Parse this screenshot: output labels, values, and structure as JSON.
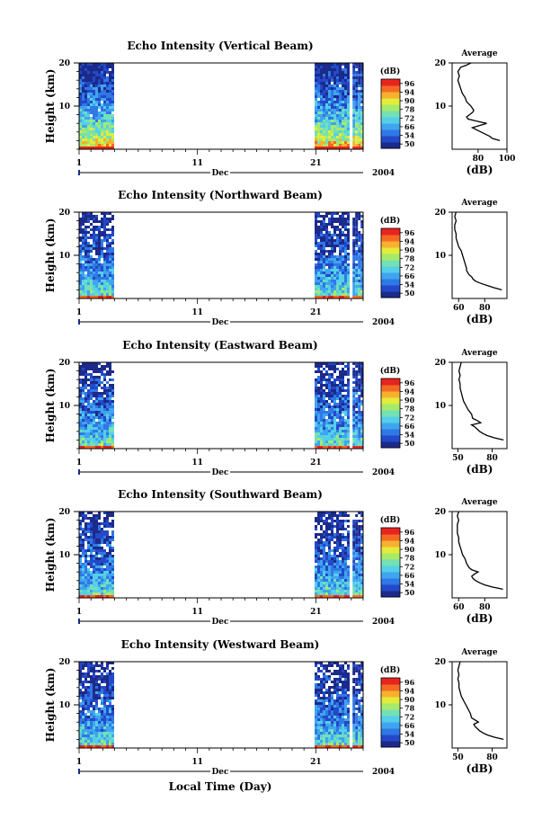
{
  "chart_data": {
    "type": "heatmap",
    "common": {
      "x_ticks": [
        1,
        11,
        21
      ],
      "x_range": [
        1,
        25
      ],
      "y_ticks": [
        10,
        20
      ],
      "y_range": [
        0,
        20
      ],
      "xlabel": "Local Time (Day)",
      "month_label": "Dec",
      "year_label": "2004",
      "ylabel": "Height (km)",
      "data_columns_days": [
        [
          1,
          3.8
        ],
        [
          20.9,
          23.7
        ],
        [
          24.1,
          24.8
        ]
      ],
      "colorbar": {
        "unit": "(dB)",
        "ticks": [
          50,
          54,
          66,
          72,
          78,
          90,
          94,
          96
        ]
      },
      "average_title": "Average",
      "average_xlabel": "(dB)",
      "average_yticks": [
        10,
        20
      ]
    },
    "panels": [
      {
        "title": "Echo Intensity (Vertical Beam)",
        "average_xticks": [
          80,
          100
        ],
        "average_xrange": [
          62,
          100
        ],
        "average_profile": [
          {
            "h": 2.0,
            "db": 95
          },
          {
            "h": 2.5,
            "db": 90
          },
          {
            "h": 3.0,
            "db": 88
          },
          {
            "h": 3.5,
            "db": 85
          },
          {
            "h": 4.0,
            "db": 82
          },
          {
            "h": 4.5,
            "db": 79
          },
          {
            "h": 5.0,
            "db": 76
          },
          {
            "h": 5.5,
            "db": 81
          },
          {
            "h": 6.0,
            "db": 86
          },
          {
            "h": 6.5,
            "db": 79
          },
          {
            "h": 7.0,
            "db": 73
          },
          {
            "h": 7.5,
            "db": 72
          },
          {
            "h": 8.0,
            "db": 74
          },
          {
            "h": 8.5,
            "db": 76
          },
          {
            "h": 9.0,
            "db": 77
          },
          {
            "h": 10.0,
            "db": 75
          },
          {
            "h": 11.0,
            "db": 72
          },
          {
            "h": 12.0,
            "db": 71
          },
          {
            "h": 13.0,
            "db": 69
          },
          {
            "h": 14.0,
            "db": 68
          },
          {
            "h": 15.0,
            "db": 67
          },
          {
            "h": 16.0,
            "db": 66
          },
          {
            "h": 17.0,
            "db": 67
          },
          {
            "h": 18.0,
            "db": 66
          },
          {
            "h": 19.0,
            "db": 68
          },
          {
            "h": 19.5,
            "db": 72
          },
          {
            "h": 20.0,
            "db": 75
          }
        ]
      },
      {
        "title": "Echo Intensity (Northward Beam)",
        "average_xticks": [
          60,
          80
        ],
        "average_xrange": [
          55,
          97
        ],
        "average_profile": [
          {
            "h": 2.0,
            "db": 93
          },
          {
            "h": 2.5,
            "db": 87
          },
          {
            "h": 3.0,
            "db": 82
          },
          {
            "h": 3.5,
            "db": 77
          },
          {
            "h": 4.0,
            "db": 73
          },
          {
            "h": 4.5,
            "db": 71
          },
          {
            "h": 5.0,
            "db": 70
          },
          {
            "h": 5.5,
            "db": 68
          },
          {
            "h": 6.0,
            "db": 67
          },
          {
            "h": 6.5,
            "db": 66
          },
          {
            "h": 7.0,
            "db": 66
          },
          {
            "h": 8.0,
            "db": 65
          },
          {
            "h": 9.0,
            "db": 64
          },
          {
            "h": 10.0,
            "db": 63
          },
          {
            "h": 11.0,
            "db": 62
          },
          {
            "h": 12.0,
            "db": 60
          },
          {
            "h": 13.0,
            "db": 59
          },
          {
            "h": 14.0,
            "db": 58
          },
          {
            "h": 15.0,
            "db": 58
          },
          {
            "h": 16.0,
            "db": 57
          },
          {
            "h": 17.0,
            "db": 57
          },
          {
            "h": 18.0,
            "db": 58
          },
          {
            "h": 19.0,
            "db": 57
          },
          {
            "h": 20.0,
            "db": 58
          }
        ]
      },
      {
        "title": "Echo Intensity (Eastward Beam)",
        "average_xticks": [
          50,
          80
        ],
        "average_xrange": [
          45,
          93
        ],
        "average_profile": [
          {
            "h": 2.0,
            "db": 90
          },
          {
            "h": 2.5,
            "db": 82
          },
          {
            "h": 3.0,
            "db": 76
          },
          {
            "h": 3.5,
            "db": 72
          },
          {
            "h": 4.0,
            "db": 69
          },
          {
            "h": 4.5,
            "db": 67
          },
          {
            "h": 5.0,
            "db": 65
          },
          {
            "h": 5.5,
            "db": 62
          },
          {
            "h": 6.0,
            "db": 70
          },
          {
            "h": 6.5,
            "db": 67
          },
          {
            "h": 7.0,
            "db": 63
          },
          {
            "h": 8.0,
            "db": 62
          },
          {
            "h": 9.0,
            "db": 59
          },
          {
            "h": 10.0,
            "db": 57
          },
          {
            "h": 11.0,
            "db": 55
          },
          {
            "h": 12.0,
            "db": 54
          },
          {
            "h": 13.0,
            "db": 53
          },
          {
            "h": 14.0,
            "db": 52
          },
          {
            "h": 15.0,
            "db": 52
          },
          {
            "h": 16.0,
            "db": 51
          },
          {
            "h": 17.0,
            "db": 52
          },
          {
            "h": 18.0,
            "db": 51
          },
          {
            "h": 19.0,
            "db": 52
          },
          {
            "h": 20.0,
            "db": 53
          }
        ]
      },
      {
        "title": "Echo Intensity (Southward Beam)",
        "average_xticks": [
          60,
          80
        ],
        "average_xrange": [
          55,
          97
        ],
        "average_profile": [
          {
            "h": 2.0,
            "db": 94
          },
          {
            "h": 2.5,
            "db": 86
          },
          {
            "h": 3.0,
            "db": 80
          },
          {
            "h": 3.5,
            "db": 76
          },
          {
            "h": 4.0,
            "db": 73
          },
          {
            "h": 4.5,
            "db": 71
          },
          {
            "h": 5.0,
            "db": 70
          },
          {
            "h": 5.5,
            "db": 72
          },
          {
            "h": 6.0,
            "db": 75
          },
          {
            "h": 6.5,
            "db": 70
          },
          {
            "h": 7.0,
            "db": 68
          },
          {
            "h": 8.0,
            "db": 66
          },
          {
            "h": 9.0,
            "db": 65
          },
          {
            "h": 10.0,
            "db": 63
          },
          {
            "h": 11.0,
            "db": 62
          },
          {
            "h": 12.0,
            "db": 61
          },
          {
            "h": 13.0,
            "db": 60
          },
          {
            "h": 14.0,
            "db": 60
          },
          {
            "h": 15.0,
            "db": 59
          },
          {
            "h": 16.0,
            "db": 59
          },
          {
            "h": 17.0,
            "db": 59
          },
          {
            "h": 18.0,
            "db": 60
          },
          {
            "h": 19.0,
            "db": 59
          },
          {
            "h": 20.0,
            "db": 60
          }
        ]
      },
      {
        "title": "Echo Intensity (Westward Beam)",
        "average_xticks": [
          50,
          80
        ],
        "average_xrange": [
          45,
          93
        ],
        "average_profile": [
          {
            "h": 2.0,
            "db": 90
          },
          {
            "h": 2.5,
            "db": 82
          },
          {
            "h": 3.0,
            "db": 76
          },
          {
            "h": 3.5,
            "db": 72
          },
          {
            "h": 4.0,
            "db": 69
          },
          {
            "h": 4.5,
            "db": 67
          },
          {
            "h": 5.0,
            "db": 65
          },
          {
            "h": 5.5,
            "db": 64
          },
          {
            "h": 6.0,
            "db": 68
          },
          {
            "h": 6.5,
            "db": 65
          },
          {
            "h": 7.0,
            "db": 62
          },
          {
            "h": 8.0,
            "db": 61
          },
          {
            "h": 9.0,
            "db": 59
          },
          {
            "h": 10.0,
            "db": 57
          },
          {
            "h": 11.0,
            "db": 55
          },
          {
            "h": 12.0,
            "db": 53
          },
          {
            "h": 13.0,
            "db": 52
          },
          {
            "h": 14.0,
            "db": 51
          },
          {
            "h": 15.0,
            "db": 51
          },
          {
            "h": 16.0,
            "db": 50
          },
          {
            "h": 17.0,
            "db": 51
          },
          {
            "h": 18.0,
            "db": 50
          },
          {
            "h": 19.0,
            "db": 51
          },
          {
            "h": 20.0,
            "db": 52
          }
        ]
      }
    ]
  }
}
